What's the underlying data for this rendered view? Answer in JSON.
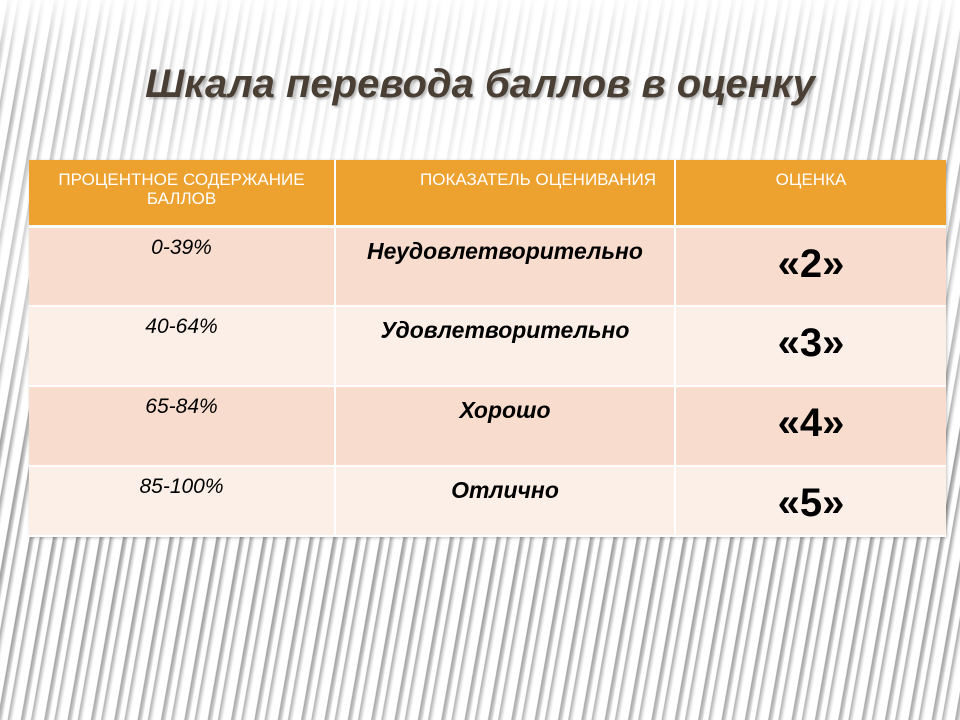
{
  "title": "Шкала перевода баллов в оценку",
  "table": {
    "headers": [
      "ПРОЦЕНТНОЕ СОДЕРЖАНИЕ БАЛЛОВ",
      "ПОКАЗАТЕЛЬ ОЦЕНИВАНИЯ",
      "ОЦЕНКА"
    ],
    "rows": [
      {
        "percent": "0-39%",
        "indicator": "Неудовлетворительно",
        "grade": "«2»"
      },
      {
        "percent": "40-64%",
        "indicator": "Удовлетворительно",
        "grade": "«3»"
      },
      {
        "percent": "65-84%",
        "indicator": "Хорошо",
        "grade": "«4»"
      },
      {
        "percent": "85-100%",
        "indicator": "Отлично",
        "grade": "«5»"
      }
    ]
  },
  "colors": {
    "header_bg": "#eda12f",
    "row_odd_bg": "#f8ddcf",
    "row_even_bg": "#fcefe8",
    "title_text": "#4a3f35"
  }
}
